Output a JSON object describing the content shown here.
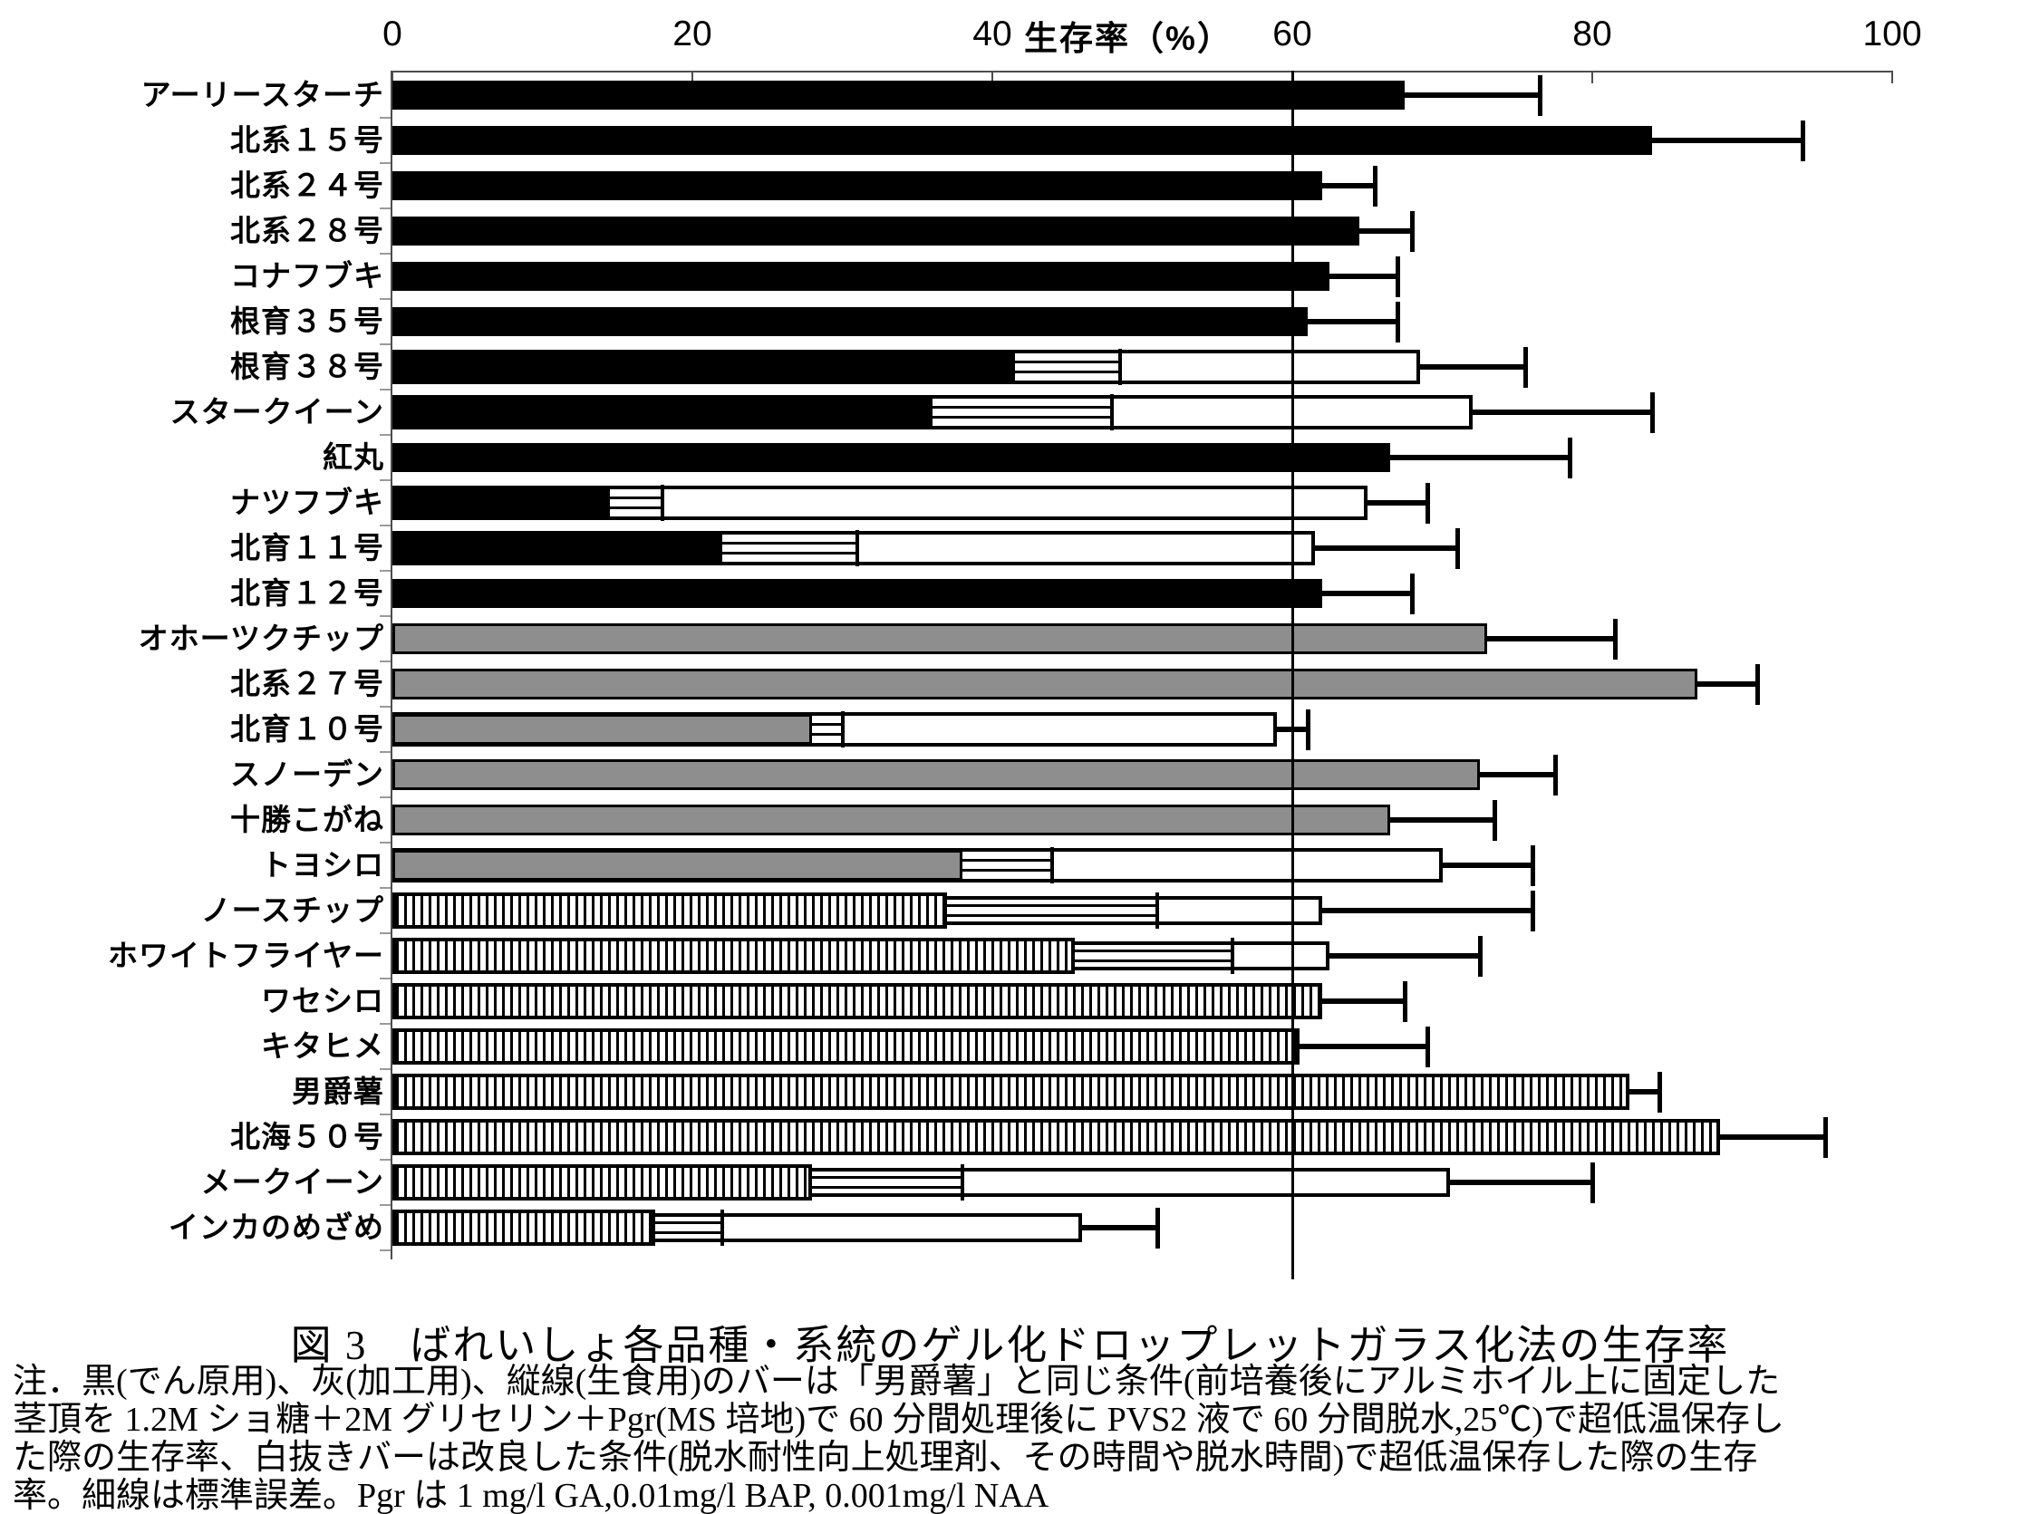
{
  "axis": {
    "title": "生存率（%）",
    "min": 0,
    "max": 100,
    "ticks": [
      0,
      20,
      40,
      60,
      80,
      100
    ],
    "reference_line": 60
  },
  "chart_data": {
    "type": "bar",
    "orientation": "horizontal",
    "title": "図 3　ばれいしょ各品種・系統のゲル化ドロップレットガラス化法の生存率",
    "xlabel": "生存率（%）",
    "ylabel": "",
    "xlim": [
      0,
      100
    ],
    "x_ticks": [
      0,
      20,
      40,
      60,
      80,
      100
    ],
    "reference_line_x": 60,
    "grid": false,
    "legend_position": "none",
    "bar_meaning": {
      "starch": "黒(でん原用) 男爵薯と同じ条件での生存率",
      "processing": "灰(加工用) 男爵薯と同じ条件での生存率",
      "table": "縦線(生食用) 男爵薯と同じ条件での生存率",
      "improved": "白抜きバー 改良した条件での生存率",
      "error_bars": "細線は標準誤差"
    },
    "rows": [
      {
        "label": "アーリースターチ",
        "group": "starch",
        "base": 67.5,
        "base_se": null,
        "improved": null,
        "se": 9
      },
      {
        "label": "北系１５号",
        "group": "starch",
        "base": 84,
        "base_se": null,
        "improved": null,
        "se": 10
      },
      {
        "label": "北系２４号",
        "group": "starch",
        "base": 62,
        "base_se": null,
        "improved": null,
        "se": 3.5
      },
      {
        "label": "北系２８号",
        "group": "starch",
        "base": 64.5,
        "base_se": null,
        "improved": null,
        "se": 3.5
      },
      {
        "label": "コナフブキ",
        "group": "starch",
        "base": 62.5,
        "base_se": null,
        "improved": null,
        "se": 4.5
      },
      {
        "label": "根育３５号",
        "group": "starch",
        "base": 61,
        "base_se": null,
        "improved": null,
        "se": 6
      },
      {
        "label": "根育３８号",
        "group": "starch",
        "base": 41.5,
        "base_se": 7,
        "improved": 68.5,
        "se": 7
      },
      {
        "label": "スタークイーン",
        "group": "starch",
        "base": 36,
        "base_se": 12,
        "improved": 72,
        "se": 12
      },
      {
        "label": "紅丸",
        "group": "starch",
        "base": 66.5,
        "base_se": null,
        "improved": null,
        "se": 12
      },
      {
        "label": "ナツフブキ",
        "group": "starch",
        "base": 14.5,
        "base_se": 3.5,
        "improved": 65,
        "se": 4
      },
      {
        "label": "北育１１号",
        "group": "starch",
        "base": 22,
        "base_se": 9,
        "improved": 61.5,
        "se": 9.5
      },
      {
        "label": "北育１２号",
        "group": "starch",
        "base": 62,
        "base_se": null,
        "improved": null,
        "se": 6
      },
      {
        "label": "オホーツクチップ",
        "group": "processing",
        "base": 73,
        "base_se": null,
        "improved": null,
        "se": 8.5
      },
      {
        "label": "北系２７号",
        "group": "processing",
        "base": 87,
        "base_se": null,
        "improved": null,
        "se": 4
      },
      {
        "label": "北育１０号",
        "group": "processing",
        "base": 28,
        "base_se": 2,
        "improved": 59,
        "se": 2
      },
      {
        "label": "スノーデン",
        "group": "processing",
        "base": 72.5,
        "base_se": null,
        "improved": null,
        "se": 5
      },
      {
        "label": "十勝こがね",
        "group": "processing",
        "base": 66.5,
        "base_se": null,
        "improved": null,
        "se": 7
      },
      {
        "label": "トヨシロ",
        "group": "processing",
        "base": 38,
        "base_se": 6,
        "improved": 70,
        "se": 6
      },
      {
        "label": "ノースチップ",
        "group": "table",
        "base": 37,
        "base_se": 14,
        "improved": 62,
        "se": 14
      },
      {
        "label": "ホワイトフライヤー",
        "group": "table",
        "base": 45.5,
        "base_se": 10.5,
        "improved": 62.5,
        "se": 10
      },
      {
        "label": "ワセシロ",
        "group": "table",
        "base": 62,
        "base_se": null,
        "improved": null,
        "se": 5.5
      },
      {
        "label": "キタヒメ",
        "group": "table",
        "base": 60.5,
        "base_se": null,
        "improved": null,
        "se": 8.5
      },
      {
        "label": "男爵薯",
        "group": "table",
        "base": 82.5,
        "base_se": null,
        "improved": null,
        "se": 2
      },
      {
        "label": "北海５０号",
        "group": "table",
        "base": 88.5,
        "base_se": null,
        "improved": null,
        "se": 7
      },
      {
        "label": "メークイーン",
        "group": "table",
        "base": 28,
        "base_se": 10,
        "improved": 70.5,
        "se": 9.5
      },
      {
        "label": "インカのめざめ",
        "group": "table",
        "base": 17.5,
        "base_se": 4.5,
        "improved": 46,
        "se": 5
      }
    ]
  },
  "caption": "図 3　ばれいしょ各品種・系統のゲル化ドロップレットガラス化法の生存率",
  "notes": [
    "注．黒(でん原用)、灰(加工用)、縦線(生食用)のバーは「男爵薯」と同じ条件(前培養後にアルミホイル上に固定した",
    "茎頂を 1.2M ショ糖＋2M グリセリン＋Pgr(MS 培地)で 60 分間処理後に PVS2 液で 60 分間脱水,25℃)で超低温保存し",
    "た際の生存率、白抜きバーは改良した条件(脱水耐性向上処理剤、その時間や脱水時間)で超低温保存した際の生存",
    "率。細線は標準誤差。Pgr は 1 mg/l GA,0.01mg/l BAP, 0.001mg/l NAA"
  ]
}
